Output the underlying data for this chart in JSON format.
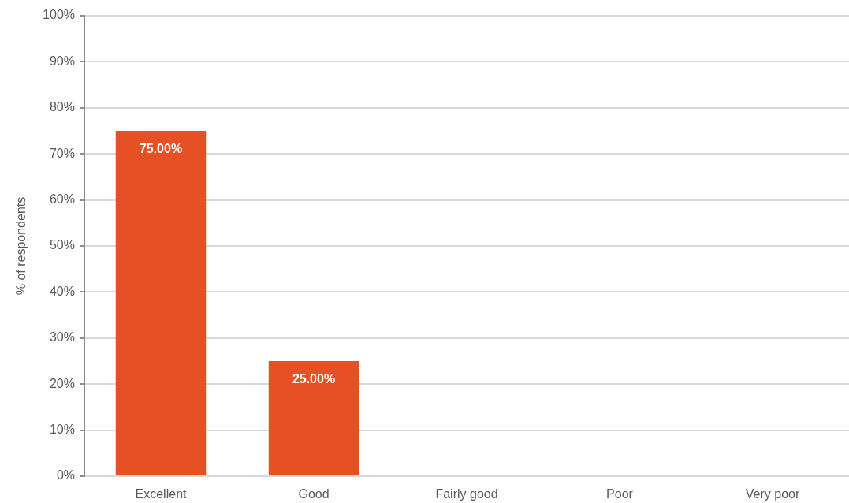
{
  "chart_data": {
    "type": "bar",
    "categories": [
      "Excellent",
      "Good",
      "Fairly good",
      "Poor",
      "Very poor"
    ],
    "values": [
      75,
      25,
      0,
      0,
      0
    ],
    "color": "#e65025",
    "value_labels": [
      "75.00%",
      "25.00%",
      null,
      null,
      null
    ],
    "ylabel": "% of respondents",
    "ylim": [
      0,
      100
    ],
    "yticks": [
      {
        "value": 0,
        "label": "0%"
      },
      {
        "value": 10,
        "label": "10%"
      },
      {
        "value": 20,
        "label": "20%"
      },
      {
        "value": 30,
        "label": "30%"
      },
      {
        "value": 40,
        "label": "40%"
      },
      {
        "value": 50,
        "label": "50%"
      },
      {
        "value": 60,
        "label": "60%"
      },
      {
        "value": 70,
        "label": "70%"
      },
      {
        "value": 80,
        "label": "80%"
      },
      {
        "value": 90,
        "label": "90%"
      },
      {
        "value": 100,
        "label": "100%"
      }
    ],
    "grid": "y",
    "legend": false
  }
}
